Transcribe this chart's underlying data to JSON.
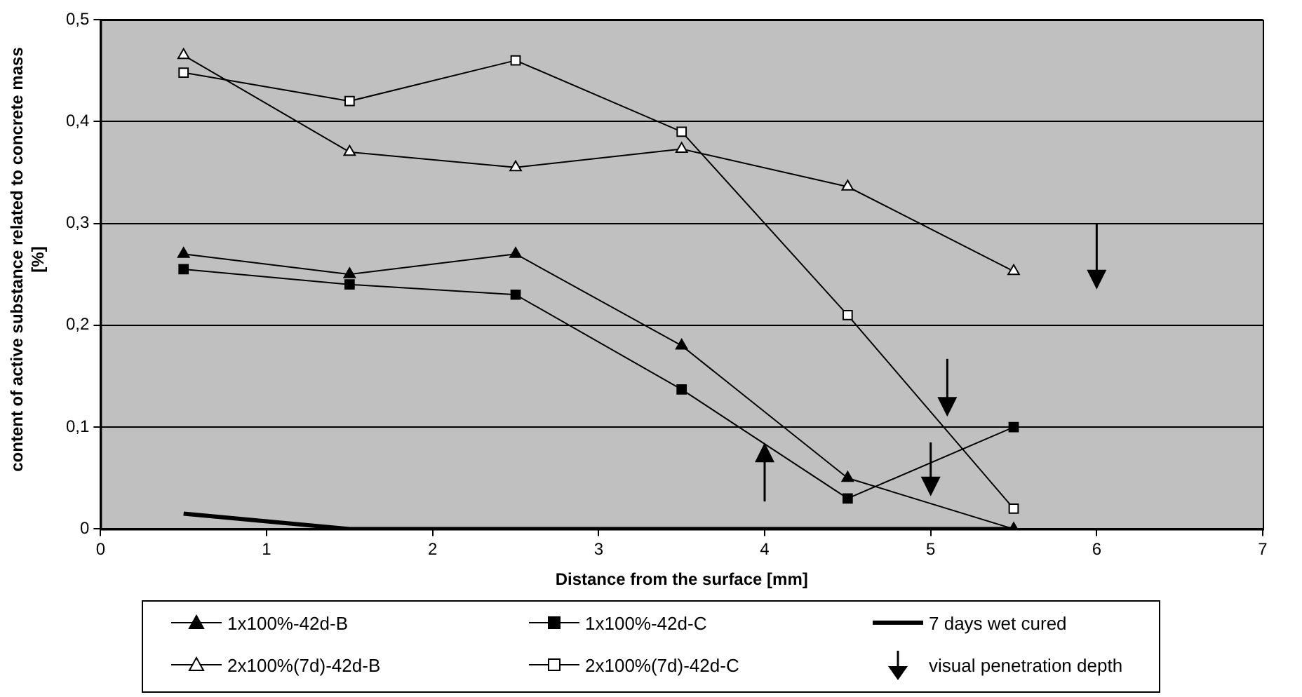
{
  "chart_data": {
    "type": "line",
    "xlabel": "Distance from the surface [mm]",
    "ylabel": "content of active substance related to concrete mass [%]",
    "x": [
      0.5,
      1.5,
      2.5,
      3.5,
      4.5,
      5.5
    ],
    "series": [
      {
        "name": "1x100%-42d-B",
        "color": "#000000",
        "marker": "triangle",
        "values": [
          0.27,
          0.25,
          0.27,
          0.18,
          0.05,
          0
        ]
      },
      {
        "name": "1x100%-42d-C",
        "color": "#000000",
        "marker": "square",
        "values": [
          0.255,
          0.24,
          0.23,
          0.137,
          0.03,
          0.1
        ]
      },
      {
        "name": "7 days wet cured",
        "color": "#000000",
        "marker": "none",
        "values": [
          0.015,
          0,
          0,
          0,
          0,
          0
        ]
      },
      {
        "name": "2x100%(7d)-42d-B",
        "color": "#ffffff",
        "marker": "triangle",
        "values": [
          0.465,
          0.37,
          0.355,
          0.373,
          0.336,
          0.253
        ]
      },
      {
        "name": "2x100%(7d)-42d-C",
        "color": "#ffffff",
        "marker": "square",
        "values": [
          0.448,
          0.42,
          0.46,
          0.39,
          0.21,
          0.02
        ]
      },
      {
        "name": "visual penetration depth",
        "type": "scatter",
        "color": "#000000",
        "x": [
          4.0,
          5.0,
          5.1,
          6.0
        ],
        "values": [
          0.072,
          0.045,
          0.123,
          0.248
        ],
        "errors": [
          [
            0.027,
            0.072
          ],
          [
            0.045,
            0.085
          ],
          [
            0.123,
            0.167
          ],
          [
            0.248,
            0.3
          ]
        ]
      }
    ],
    "xlim": [
      0,
      7
    ],
    "xticks": [
      0,
      1,
      2,
      3,
      4,
      5,
      6,
      7
    ],
    "ylim": [
      0,
      0.5
    ],
    "yticks": [
      0,
      {
        "value": 0.1,
        "label": "0,1"
      },
      {
        "value": 0.2,
        "label": "0,2"
      },
      {
        "value": 0.3,
        "label": "0,3"
      },
      {
        "value": 0.4,
        "label": "0,4"
      },
      {
        "value": 0.5,
        "label": "0,5"
      }
    ],
    "grid": "y",
    "legend": "bottom"
  }
}
